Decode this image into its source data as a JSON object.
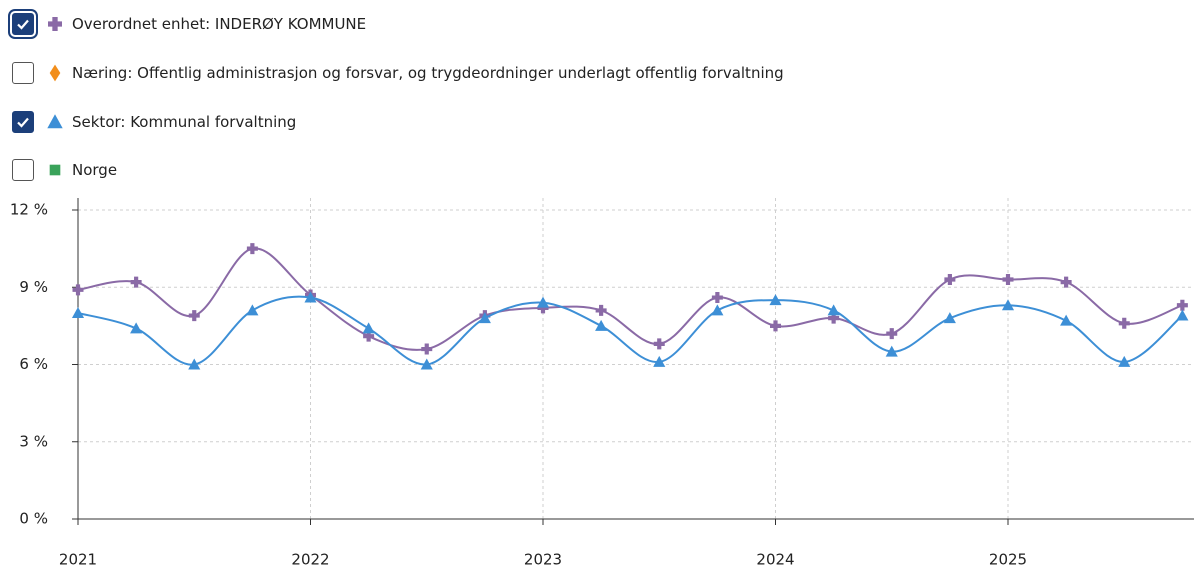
{
  "chart_data": {
    "type": "line",
    "x": [
      2021,
      2021.25,
      2021.5,
      2021.75,
      2022,
      2022.25,
      2022.5,
      2022.75,
      2023,
      2023.25,
      2023.5,
      2023.75,
      2024,
      2024.25,
      2024.5,
      2024.75,
      2025,
      2025.25,
      2025.5,
      2025.75
    ],
    "series": [
      {
        "name": "Overordnet enhet: INDERØY KOMMUNE",
        "color": "#8a6aa6",
        "marker": "plus",
        "checked": true,
        "values": [
          8.9,
          9.2,
          7.9,
          10.5,
          8.7,
          7.1,
          6.6,
          7.9,
          8.2,
          8.1,
          6.8,
          8.6,
          7.5,
          7.8,
          7.2,
          9.3,
          9.3,
          9.2,
          7.6,
          8.3
        ]
      },
      {
        "name": "Næring: Offentlig administrasjon og forsvar, og trygdeordninger underlagt offentlig forvaltning",
        "color": "#f28e1b",
        "marker": "diamond",
        "checked": false
      },
      {
        "name": "Sektor: Kommunal forvaltning",
        "color": "#3d8fd6",
        "marker": "triangle",
        "checked": true,
        "values": [
          8.0,
          7.4,
          6.0,
          8.1,
          8.6,
          7.4,
          6.0,
          7.8,
          8.4,
          7.5,
          6.1,
          8.1,
          8.5,
          8.1,
          6.5,
          7.8,
          8.3,
          7.7,
          6.1,
          7.9
        ]
      },
      {
        "name": "Norge",
        "color": "#3aa35a",
        "marker": "square",
        "checked": false
      }
    ],
    "xlim": [
      2021,
      2025.8
    ],
    "xticks": [
      2021,
      2022,
      2023,
      2024,
      2025
    ],
    "ylim": [
      0,
      12
    ],
    "yticks": [
      {
        "value": 0,
        "label": "0 %"
      },
      {
        "value": 3,
        "label": "3 %"
      },
      {
        "value": 6,
        "label": "6 %"
      },
      {
        "value": 9,
        "label": "9 %"
      },
      {
        "value": 12,
        "label": "12 %"
      }
    ],
    "grid": true,
    "smooth": true
  }
}
